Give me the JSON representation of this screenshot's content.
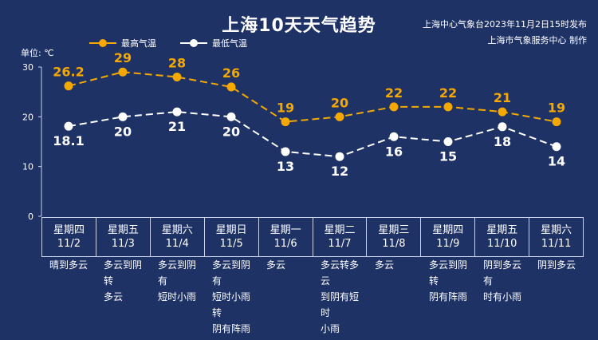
{
  "title": "上海10天天气趋势",
  "publish_line1": "上海中心气象台2023年11月2日15时发布",
  "publish_line2": "上海市气象服务中心 制作",
  "unit_label": "单位: ℃",
  "colors": {
    "background": "#1e3266",
    "high": "#f5a800",
    "low": "#ffffff"
  },
  "chart_data": {
    "type": "line",
    "ylim": [
      0,
      30
    ],
    "yticks": [
      0,
      10,
      20,
      30
    ],
    "categories": [
      "11/2",
      "11/3",
      "11/4",
      "11/5",
      "11/6",
      "11/7",
      "11/8",
      "11/9",
      "11/10",
      "11/11"
    ],
    "series": [
      {
        "name": "最高气温",
        "values": [
          26.2,
          29,
          28,
          26,
          19,
          20,
          22,
          22,
          21,
          19
        ],
        "labels": [
          "26.2",
          "29",
          "28",
          "26",
          "19",
          "20",
          "22",
          "22",
          "21",
          "19"
        ]
      },
      {
        "name": "最低气温",
        "values": [
          18.1,
          20,
          21,
          20,
          13,
          12,
          16,
          15,
          18,
          14
        ],
        "labels": [
          "18.1",
          "20",
          "21",
          "20",
          "13",
          "12",
          "16",
          "15",
          "18",
          "14"
        ]
      }
    ],
    "legend_position": "top-left"
  },
  "days": [
    {
      "weekday": "星期四",
      "date": "11/2",
      "desc": [
        "晴到多云"
      ]
    },
    {
      "weekday": "星期五",
      "date": "11/3",
      "desc": [
        "多云到阴转",
        "多云"
      ]
    },
    {
      "weekday": "星期六",
      "date": "11/4",
      "desc": [
        "多云到阴有",
        "短时小雨"
      ]
    },
    {
      "weekday": "星期日",
      "date": "11/5",
      "desc": [
        "多云到阴有",
        "短时小雨转",
        "阴有阵雨"
      ]
    },
    {
      "weekday": "星期一",
      "date": "11/6",
      "desc": [
        "多云"
      ]
    },
    {
      "weekday": "星期二",
      "date": "11/7",
      "desc": [
        "多云转多云",
        "到阴有短时",
        "小雨"
      ]
    },
    {
      "weekday": "星期三",
      "date": "11/8",
      "desc": [
        "多云"
      ]
    },
    {
      "weekday": "星期四",
      "date": "11/9",
      "desc": [
        "多云到阴转",
        "阴有阵雨"
      ]
    },
    {
      "weekday": "星期五",
      "date": "11/10",
      "desc": [
        "阴到多云有",
        "时有小雨"
      ]
    },
    {
      "weekday": "星期六",
      "date": "11/11",
      "desc": [
        "阴到多云"
      ]
    }
  ]
}
